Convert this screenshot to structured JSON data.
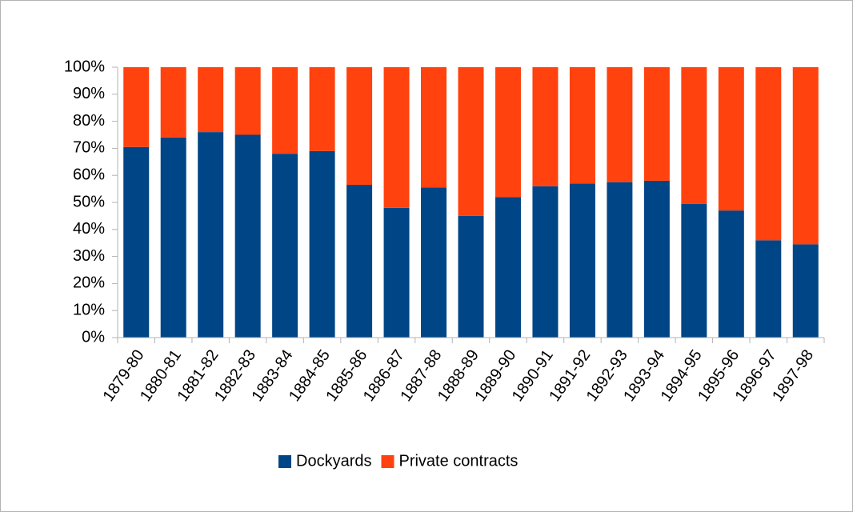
{
  "chart_data": {
    "type": "stacked_bar_100",
    "categories": [
      "1879-80",
      "1880-81",
      "1881-82",
      "1882-83",
      "1883-84",
      "1884-85",
      "1885-86",
      "1886-87",
      "1887-88",
      "1888-89",
      "1889-90",
      "1890-91",
      "1891-92",
      "1892-93",
      "1893-94",
      "1894-95",
      "1895-96",
      "1896-97",
      "1897-98"
    ],
    "series": [
      {
        "name": "Dockyards",
        "color": "#004586",
        "values": [
          70.5,
          74,
          76,
          75,
          68,
          69,
          56.5,
          48,
          55.5,
          45,
          52,
          56,
          57,
          57.5,
          58,
          49.5,
          47,
          36,
          34.5
        ]
      },
      {
        "name": "Private contracts",
        "color": "#ff420e",
        "values": [
          29.5,
          26,
          24,
          25,
          32,
          31,
          43.5,
          52,
          44.5,
          55,
          48,
          44,
          43,
          42.5,
          42,
          50.5,
          53,
          64,
          65.5
        ]
      }
    ],
    "ylim": [
      0,
      100
    ],
    "yticks": [
      {
        "value": 0,
        "label": "0%"
      },
      {
        "value": 10,
        "label": "10%"
      },
      {
        "value": 20,
        "label": "20%"
      },
      {
        "value": 30,
        "label": "30%"
      },
      {
        "value": 40,
        "label": "40%"
      },
      {
        "value": 50,
        "label": "50%"
      },
      {
        "value": 60,
        "label": "60%"
      },
      {
        "value": 70,
        "label": "70%"
      },
      {
        "value": 80,
        "label": "80%"
      },
      {
        "value": 90,
        "label": "90%"
      },
      {
        "value": 100,
        "label": "100%"
      }
    ],
    "grid": false,
    "legend": "bottom"
  }
}
